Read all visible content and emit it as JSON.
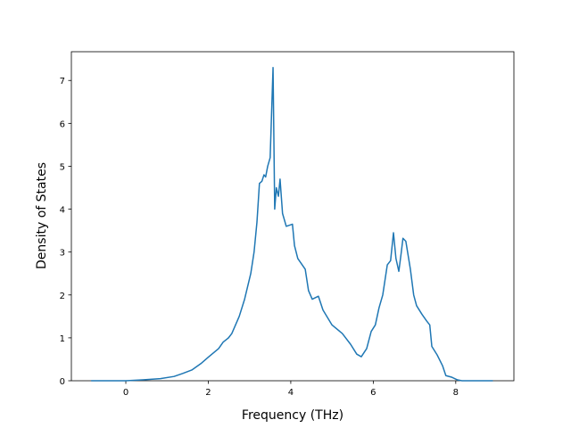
{
  "chart_data": {
    "type": "line",
    "xlabel": "Frequency (THz)",
    "ylabel": "Density of States",
    "x": [
      -0.84,
      0,
      0.41,
      0.84,
      1.17,
      1.38,
      1.6,
      1.82,
      2.0,
      2.25,
      2.36,
      2.49,
      2.57,
      2.75,
      2.88,
      3.03,
      3.11,
      3.18,
      3.2,
      3.24,
      3.3,
      3.35,
      3.39,
      3.44,
      3.5,
      3.57,
      3.61,
      3.65,
      3.7,
      3.74,
      3.8,
      3.89,
      4.04,
      4.09,
      4.17,
      4.35,
      4.43,
      4.52,
      4.67,
      4.78,
      5.0,
      5.25,
      5.45,
      5.6,
      5.71,
      5.84,
      5.95,
      6.05,
      6.14,
      6.23,
      6.34,
      6.42,
      6.49,
      6.55,
      6.62,
      6.68,
      6.72,
      6.79,
      6.9,
      6.98,
      7.05,
      7.18,
      7.29,
      7.37,
      7.42,
      7.55,
      7.68,
      7.76,
      7.91,
      8.04,
      8.15,
      8.9
    ],
    "series": [
      {
        "color": "#1f77b4",
        "values": [
          0,
          0,
          0.02,
          0.05,
          0.1,
          0.17,
          0.25,
          0.4,
          0.55,
          0.75,
          0.9,
          1.0,
          1.1,
          1.5,
          1.9,
          2.5,
          3.0,
          3.7,
          4.0,
          4.6,
          4.65,
          4.8,
          4.75,
          5.0,
          5.2,
          7.3,
          4.0,
          4.5,
          4.3,
          4.7,
          3.9,
          3.6,
          3.65,
          3.15,
          2.85,
          2.6,
          2.1,
          1.9,
          1.97,
          1.65,
          1.3,
          1.1,
          0.85,
          0.62,
          0.56,
          0.75,
          1.15,
          1.3,
          1.7,
          2.0,
          2.7,
          2.8,
          3.45,
          2.85,
          2.55,
          3.0,
          3.32,
          3.25,
          2.6,
          2.0,
          1.75,
          1.55,
          1.4,
          1.3,
          0.8,
          0.6,
          0.35,
          0.12,
          0.08,
          0.02,
          0,
          0
        ]
      }
    ],
    "xlim": [
      -1.32,
      9.41
    ],
    "ylim": [
      0,
      7.67
    ],
    "xticks": [
      0,
      2,
      4,
      6,
      8
    ],
    "yticks": [
      0,
      1,
      2,
      3,
      4,
      5,
      6,
      7
    ]
  }
}
